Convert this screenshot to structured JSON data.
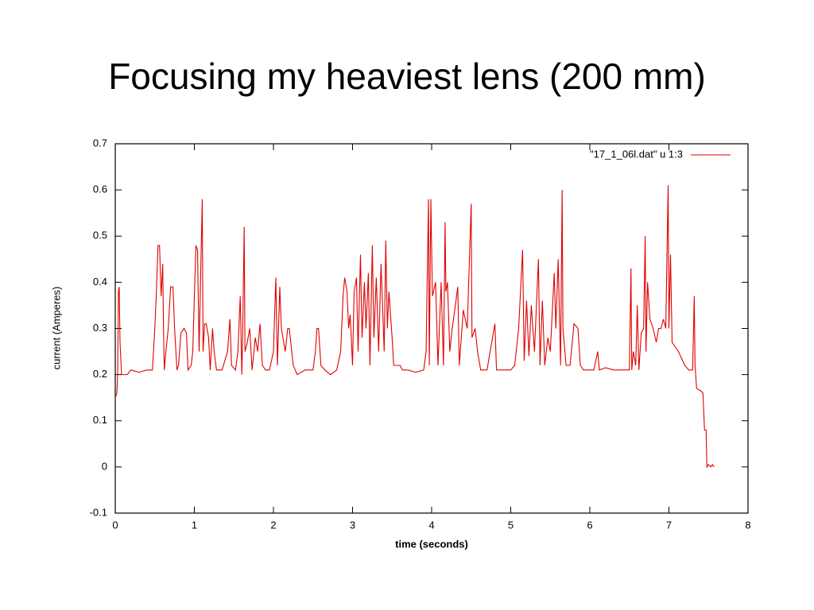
{
  "chart_data": {
    "type": "line",
    "title": "Focusing my heaviest lens (200 mm)",
    "xlabel": "time (seconds)",
    "ylabel": "current (Amperes)",
    "xlim": [
      0,
      8
    ],
    "xticks": [
      0,
      1,
      2,
      3,
      4,
      5,
      6,
      7,
      8
    ],
    "ylim": [
      -0.1,
      0.7
    ],
    "yticks": [
      -0.1,
      0,
      0.1,
      0.2,
      0.3,
      0.4,
      0.5,
      0.6,
      0.7
    ],
    "grid": false,
    "legend": "top right",
    "x": [
      0,
      0.02,
      0.03,
      0.04,
      0.05,
      0.06,
      0.08,
      0.15,
      0.2,
      0.3,
      0.4,
      0.47,
      0.5,
      0.52,
      0.54,
      0.56,
      0.57,
      0.58,
      0.6,
      0.61,
      0.62,
      0.64,
      0.67,
      0.7,
      0.73,
      0.75,
      0.78,
      0.8,
      0.83,
      0.87,
      0.9,
      0.92,
      0.96,
      0.98,
      1.0,
      1.02,
      1.04,
      1.06,
      1.08,
      1.1,
      1.11,
      1.13,
      1.15,
      1.18,
      1.2,
      1.23,
      1.25,
      1.28,
      1.35,
      1.42,
      1.45,
      1.47,
      1.52,
      1.55,
      1.58,
      1.6,
      1.61,
      1.63,
      1.64,
      1.67,
      1.7,
      1.73,
      1.77,
      1.8,
      1.83,
      1.86,
      1.9,
      1.95,
      2.0,
      2.03,
      2.05,
      2.08,
      2.1,
      2.15,
      2.18,
      2.2,
      2.25,
      2.3,
      2.4,
      2.5,
      2.53,
      2.55,
      2.57,
      2.6,
      2.65,
      2.72,
      2.8,
      2.85,
      2.88,
      2.9,
      2.93,
      2.95,
      2.97,
      3.0,
      3.02,
      3.05,
      3.07,
      3.1,
      3.12,
      3.15,
      3.17,
      3.2,
      3.22,
      3.25,
      3.27,
      3.3,
      3.33,
      3.36,
      3.4,
      3.42,
      3.44,
      3.46,
      3.5,
      3.52,
      3.6,
      3.63,
      3.7,
      3.8,
      3.9,
      3.93,
      3.96,
      3.97,
      3.99,
      4.01,
      4.05,
      4.08,
      4.12,
      4.15,
      4.17,
      4.18,
      4.2,
      4.23,
      4.26,
      4.3,
      4.33,
      4.35,
      4.4,
      4.45,
      4.5,
      4.51,
      4.55,
      4.58,
      4.62,
      4.7,
      4.8,
      4.82,
      4.9,
      5.0,
      5.05,
      5.1,
      5.15,
      5.17,
      5.2,
      5.23,
      5.26,
      5.3,
      5.35,
      5.37,
      5.4,
      5.43,
      5.47,
      5.5,
      5.55,
      5.57,
      5.6,
      5.63,
      5.65,
      5.66,
      5.7,
      5.75,
      5.8,
      5.85,
      5.88,
      5.92,
      6.0,
      6.05,
      6.1,
      6.12,
      6.2,
      6.3,
      6.4,
      6.5,
      6.52,
      6.53,
      6.55,
      6.58,
      6.6,
      6.62,
      6.65,
      6.68,
      6.7,
      6.71,
      6.73,
      6.76,
      6.8,
      6.84,
      6.87,
      6.9,
      6.93,
      6.96,
      6.99,
      7.0,
      7.02,
      7.04,
      7.08,
      7.12,
      7.2,
      7.25,
      7.3,
      7.32,
      7.33,
      7.35,
      7.4,
      7.43,
      7.45,
      7.47,
      7.48,
      7.5,
      7.53,
      7.55,
      7.57
    ],
    "series": [
      {
        "name": "\"17_1_06l.dat\" u 1:3",
        "color": "#e00000",
        "values": [
          0.15,
          0.16,
          0.2,
          0.38,
          0.39,
          0.27,
          0.2,
          0.2,
          0.21,
          0.205,
          0.21,
          0.21,
          0.3,
          0.38,
          0.48,
          0.48,
          0.42,
          0.37,
          0.44,
          0.3,
          0.21,
          0.25,
          0.3,
          0.39,
          0.39,
          0.3,
          0.21,
          0.22,
          0.29,
          0.3,
          0.29,
          0.21,
          0.22,
          0.25,
          0.37,
          0.48,
          0.47,
          0.25,
          0.42,
          0.58,
          0.25,
          0.31,
          0.31,
          0.28,
          0.21,
          0.3,
          0.25,
          0.21,
          0.21,
          0.25,
          0.32,
          0.22,
          0.21,
          0.25,
          0.37,
          0.2,
          0.28,
          0.52,
          0.25,
          0.27,
          0.3,
          0.21,
          0.28,
          0.25,
          0.31,
          0.22,
          0.21,
          0.21,
          0.25,
          0.41,
          0.22,
          0.39,
          0.3,
          0.25,
          0.3,
          0.3,
          0.22,
          0.2,
          0.21,
          0.21,
          0.25,
          0.3,
          0.3,
          0.22,
          0.21,
          0.2,
          0.21,
          0.25,
          0.37,
          0.41,
          0.38,
          0.3,
          0.33,
          0.22,
          0.38,
          0.41,
          0.25,
          0.46,
          0.28,
          0.4,
          0.3,
          0.42,
          0.22,
          0.48,
          0.28,
          0.41,
          0.25,
          0.44,
          0.25,
          0.49,
          0.3,
          0.38,
          0.28,
          0.22,
          0.22,
          0.21,
          0.21,
          0.205,
          0.21,
          0.25,
          0.58,
          0.22,
          0.58,
          0.37,
          0.4,
          0.22,
          0.4,
          0.22,
          0.53,
          0.38,
          0.4,
          0.25,
          0.3,
          0.35,
          0.39,
          0.22,
          0.34,
          0.3,
          0.57,
          0.28,
          0.3,
          0.25,
          0.21,
          0.21,
          0.31,
          0.21,
          0.21,
          0.21,
          0.22,
          0.3,
          0.47,
          0.23,
          0.36,
          0.24,
          0.35,
          0.25,
          0.45,
          0.22,
          0.36,
          0.22,
          0.28,
          0.25,
          0.42,
          0.3,
          0.45,
          0.22,
          0.6,
          0.3,
          0.22,
          0.22,
          0.31,
          0.3,
          0.22,
          0.21,
          0.21,
          0.21,
          0.25,
          0.21,
          0.215,
          0.21,
          0.21,
          0.21,
          0.43,
          0.21,
          0.25,
          0.22,
          0.35,
          0.21,
          0.29,
          0.3,
          0.5,
          0.25,
          0.4,
          0.32,
          0.3,
          0.27,
          0.3,
          0.3,
          0.32,
          0.3,
          0.61,
          0.3,
          0.46,
          0.27,
          0.26,
          0.25,
          0.22,
          0.21,
          0.21,
          0.37,
          0.22,
          0.17,
          0.165,
          0.16,
          0.08,
          0.08,
          0,
          0.005,
          0,
          0.005,
          0
        ]
      }
    ]
  }
}
